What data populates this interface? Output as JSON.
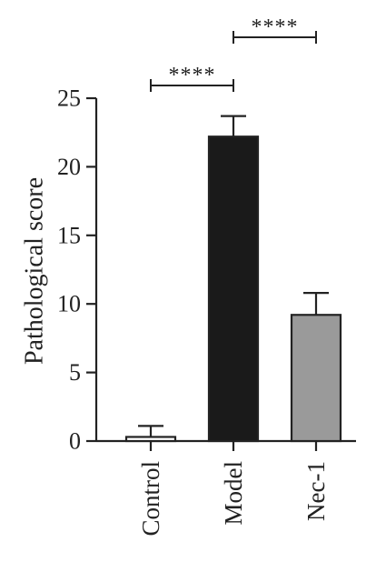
{
  "chart_data": {
    "type": "bar",
    "categories": [
      "Control",
      "Model",
      "Nec-1"
    ],
    "values": [
      0.3,
      22.2,
      9.2
    ],
    "errors": [
      0.8,
      1.5,
      1.6
    ],
    "bar_colors": [
      "#ffffff",
      "#1a1a1a",
      "#9a9a9a"
    ],
    "ylabel": "Pathological score",
    "xlabel": "",
    "ylim": [
      0,
      25
    ],
    "yticks": [
      0,
      5,
      10,
      15,
      20,
      25
    ],
    "significance": [
      {
        "from": 0,
        "to": 1,
        "label": "****"
      },
      {
        "from": 1,
        "to": 2,
        "label": "****"
      }
    ]
  }
}
